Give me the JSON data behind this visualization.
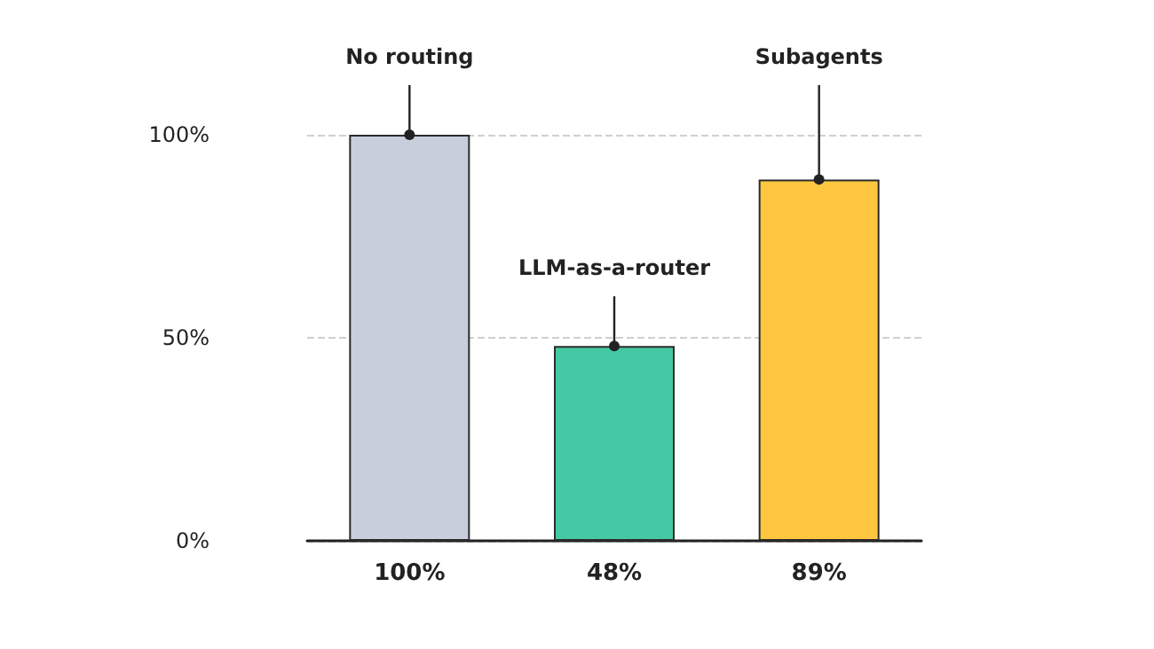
{
  "chart_data": {
    "type": "bar",
    "categories": [
      "No routing",
      "LLM-as-a-router",
      "Subagents"
    ],
    "values": [
      100,
      48,
      89
    ],
    "colors": [
      "#c8cedb",
      "#45c8a4",
      "#fec73f"
    ],
    "value_labels": [
      "100%",
      "48%",
      "89%"
    ],
    "ylim": [
      0,
      100
    ],
    "yticks": [
      {
        "value": 0,
        "label": "0%"
      },
      {
        "value": 50,
        "label": "50%"
      },
      {
        "value": 100,
        "label": "100%"
      }
    ],
    "grid": "y"
  }
}
